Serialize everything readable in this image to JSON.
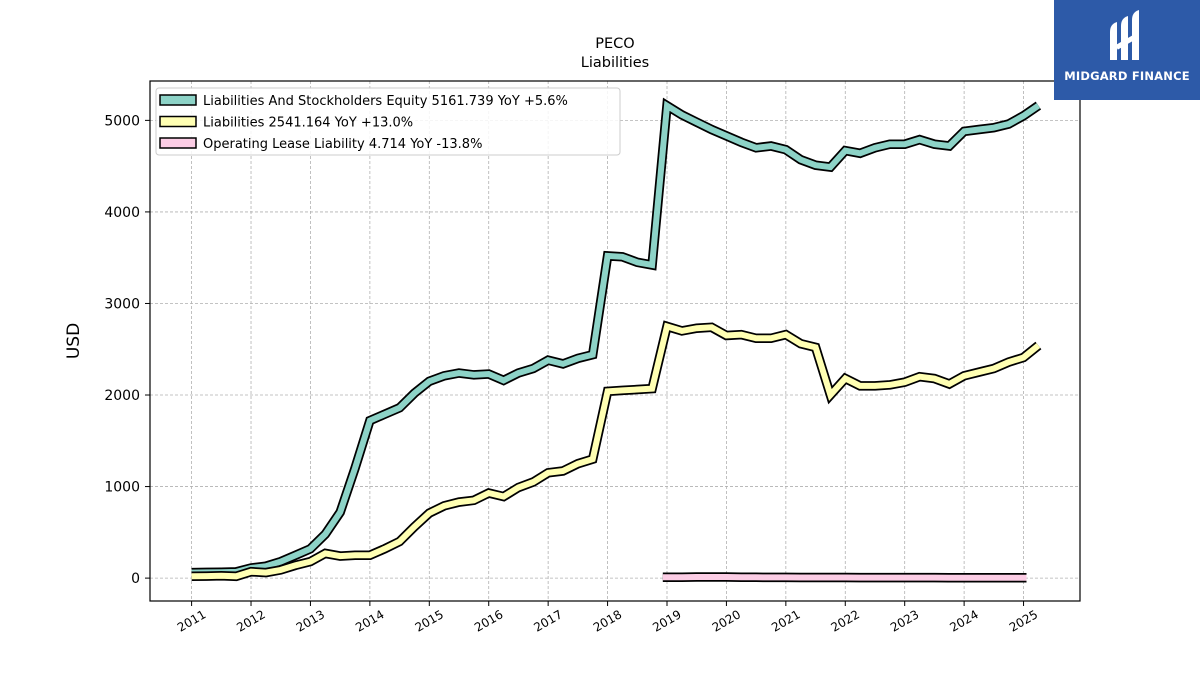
{
  "brand": {
    "name": "MIDGARD FINANCE",
    "logo_icon": "midgard-logo-icon",
    "color": "#2d5aa8"
  },
  "chart_data": {
    "type": "line",
    "title": "PECO",
    "subtitle": "Liabilities",
    "xlabel": "",
    "ylabel": "USD",
    "xlim": [
      2010.3,
      2025.95
    ],
    "ylim": [
      -250,
      5430
    ],
    "grid": true,
    "legend_position": "top-left",
    "x_ticks": [
      2011,
      2012,
      2013,
      2014,
      2015,
      2016,
      2017,
      2018,
      2019,
      2020,
      2021,
      2022,
      2023,
      2024,
      2025
    ],
    "x_tick_labels": [
      "2011",
      "2012",
      "2013",
      "2014",
      "2015",
      "2016",
      "2017",
      "2018",
      "2019",
      "2020",
      "2021",
      "2022",
      "2023",
      "2024",
      "2025"
    ],
    "y_ticks": [
      0,
      1000,
      2000,
      3000,
      4000,
      5000
    ],
    "y_tick_labels": [
      "0",
      "1000",
      "2000",
      "3000",
      "4000",
      "5000"
    ],
    "series": [
      {
        "name": "Liabilities And Stockholders Equity",
        "legend_label": "Liabilities And Stockholders Equity  5161.739 YoY +5.6%",
        "color": "#8dd3c7",
        "points": [
          [
            2011.0,
            60
          ],
          [
            2011.25,
            62
          ],
          [
            2011.5,
            65
          ],
          [
            2011.75,
            68
          ],
          [
            2012.0,
            110
          ],
          [
            2012.25,
            130
          ],
          [
            2012.5,
            180
          ],
          [
            2012.75,
            250
          ],
          [
            2013.0,
            320
          ],
          [
            2013.25,
            480
          ],
          [
            2013.5,
            720
          ],
          [
            2013.75,
            1200
          ],
          [
            2014.0,
            1720
          ],
          [
            2014.25,
            1790
          ],
          [
            2014.5,
            1860
          ],
          [
            2014.75,
            2020
          ],
          [
            2015.0,
            2150
          ],
          [
            2015.25,
            2210
          ],
          [
            2015.5,
            2240
          ],
          [
            2015.75,
            2220
          ],
          [
            2016.0,
            2230
          ],
          [
            2016.25,
            2160
          ],
          [
            2016.5,
            2240
          ],
          [
            2016.75,
            2290
          ],
          [
            2017.0,
            2380
          ],
          [
            2017.25,
            2340
          ],
          [
            2017.5,
            2400
          ],
          [
            2017.75,
            2440
          ],
          [
            2018.0,
            3520
          ],
          [
            2018.25,
            3510
          ],
          [
            2018.5,
            3450
          ],
          [
            2018.75,
            3420
          ],
          [
            2019.0,
            5160
          ],
          [
            2019.25,
            5060
          ],
          [
            2019.5,
            4980
          ],
          [
            2019.75,
            4900
          ],
          [
            2020.0,
            4830
          ],
          [
            2020.25,
            4760
          ],
          [
            2020.5,
            4700
          ],
          [
            2020.75,
            4720
          ],
          [
            2021.0,
            4680
          ],
          [
            2021.25,
            4570
          ],
          [
            2021.5,
            4510
          ],
          [
            2021.75,
            4490
          ],
          [
            2022.0,
            4670
          ],
          [
            2022.25,
            4640
          ],
          [
            2022.5,
            4700
          ],
          [
            2022.75,
            4740
          ],
          [
            2023.0,
            4740
          ],
          [
            2023.25,
            4790
          ],
          [
            2023.5,
            4740
          ],
          [
            2023.75,
            4720
          ],
          [
            2024.0,
            4880
          ],
          [
            2024.25,
            4900
          ],
          [
            2024.5,
            4920
          ],
          [
            2024.75,
            4960
          ],
          [
            2025.0,
            5050
          ],
          [
            2025.25,
            5161.739
          ]
        ]
      },
      {
        "name": "Liabilities",
        "legend_label": "Liabilities  2541.164 YoY +13.0%",
        "color": "#ffffb3",
        "points": [
          [
            2011.0,
            20
          ],
          [
            2011.25,
            22
          ],
          [
            2011.5,
            25
          ],
          [
            2011.75,
            20
          ],
          [
            2012.0,
            70
          ],
          [
            2012.25,
            60
          ],
          [
            2012.5,
            90
          ],
          [
            2012.75,
            140
          ],
          [
            2013.0,
            180
          ],
          [
            2013.25,
            270
          ],
          [
            2013.5,
            240
          ],
          [
            2013.75,
            250
          ],
          [
            2014.0,
            250
          ],
          [
            2014.25,
            320
          ],
          [
            2014.5,
            400
          ],
          [
            2014.75,
            560
          ],
          [
            2015.0,
            710
          ],
          [
            2015.25,
            790
          ],
          [
            2015.5,
            830
          ],
          [
            2015.75,
            850
          ],
          [
            2016.0,
            930
          ],
          [
            2016.25,
            890
          ],
          [
            2016.5,
            990
          ],
          [
            2016.75,
            1050
          ],
          [
            2017.0,
            1150
          ],
          [
            2017.25,
            1170
          ],
          [
            2017.5,
            1250
          ],
          [
            2017.75,
            1300
          ],
          [
            2018.0,
            2040
          ],
          [
            2018.25,
            2050
          ],
          [
            2018.5,
            2060
          ],
          [
            2018.75,
            2070
          ],
          [
            2019.0,
            2750
          ],
          [
            2019.25,
            2700
          ],
          [
            2019.5,
            2730
          ],
          [
            2019.75,
            2740
          ],
          [
            2020.0,
            2650
          ],
          [
            2020.25,
            2660
          ],
          [
            2020.5,
            2620
          ],
          [
            2020.75,
            2620
          ],
          [
            2021.0,
            2660
          ],
          [
            2021.25,
            2560
          ],
          [
            2021.5,
            2520
          ],
          [
            2021.75,
            2000
          ],
          [
            2022.0,
            2180
          ],
          [
            2022.25,
            2100
          ],
          [
            2022.5,
            2100
          ],
          [
            2022.75,
            2110
          ],
          [
            2023.0,
            2140
          ],
          [
            2023.25,
            2200
          ],
          [
            2023.5,
            2180
          ],
          [
            2023.75,
            2120
          ],
          [
            2024.0,
            2210
          ],
          [
            2024.25,
            2250
          ],
          [
            2024.5,
            2290
          ],
          [
            2024.75,
            2360
          ],
          [
            2025.0,
            2410
          ],
          [
            2025.25,
            2541.164
          ]
        ]
      },
      {
        "name": "Operating Lease Liability",
        "legend_label": "Operating Lease Liability  4.714 YoY -13.8%",
        "color": "#fccde5",
        "points": [
          [
            2018.93,
            10
          ],
          [
            2019.25,
            10
          ],
          [
            2019.5,
            12
          ],
          [
            2019.75,
            12
          ],
          [
            2020.0,
            12
          ],
          [
            2020.25,
            10
          ],
          [
            2020.5,
            9
          ],
          [
            2020.75,
            8
          ],
          [
            2021.0,
            8
          ],
          [
            2021.25,
            7
          ],
          [
            2021.5,
            7
          ],
          [
            2021.75,
            7
          ],
          [
            2022.0,
            7
          ],
          [
            2022.25,
            6
          ],
          [
            2022.5,
            6
          ],
          [
            2022.75,
            6
          ],
          [
            2023.0,
            6
          ],
          [
            2023.25,
            6
          ],
          [
            2023.5,
            6
          ],
          [
            2023.75,
            5
          ],
          [
            2024.0,
            5
          ],
          [
            2024.25,
            5
          ],
          [
            2024.5,
            5
          ],
          [
            2024.75,
            5
          ],
          [
            2025.05,
            4.714
          ]
        ]
      }
    ]
  }
}
